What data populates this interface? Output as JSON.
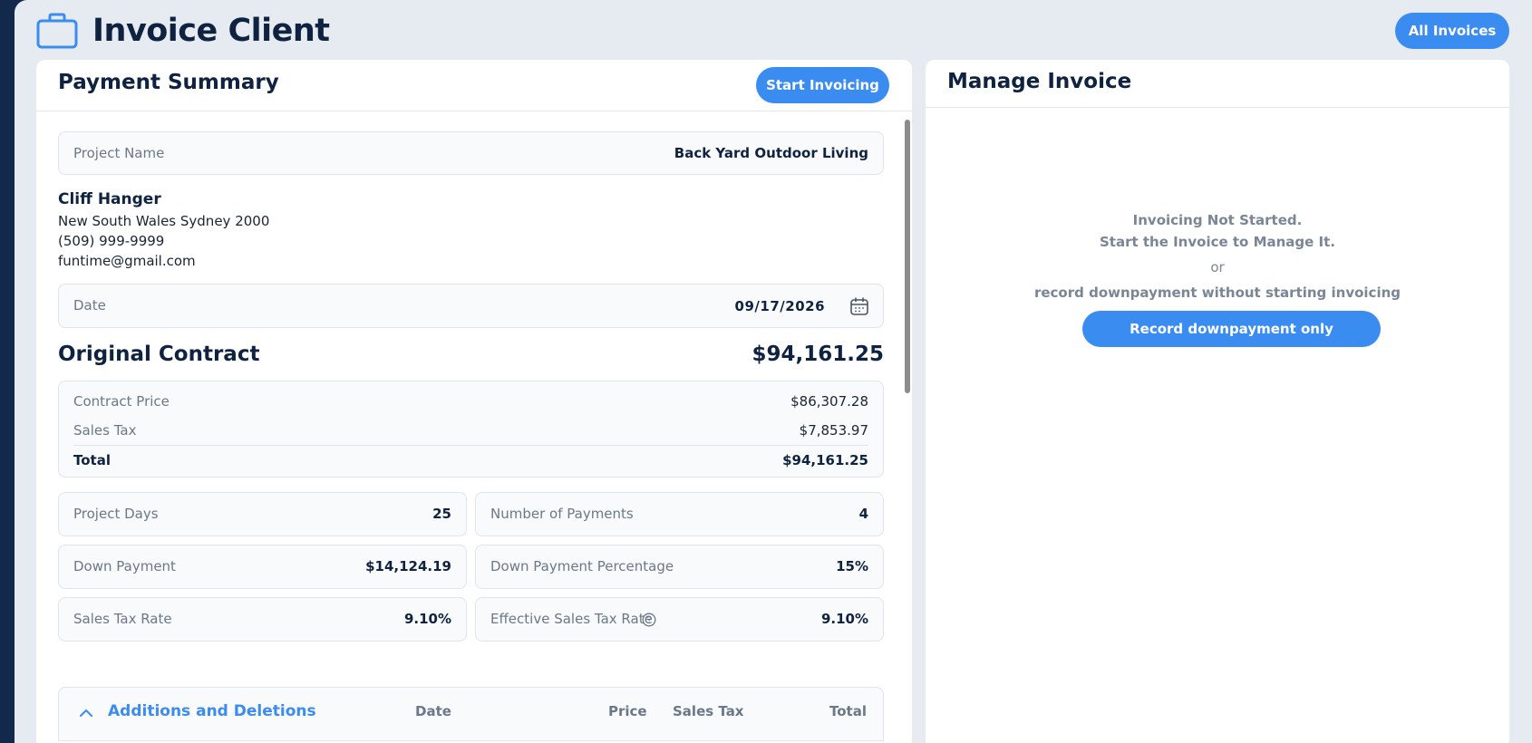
{
  "header": {
    "title": "Invoice Client",
    "all_invoices_label": "All Invoices"
  },
  "payment_summary": {
    "title": "Payment Summary",
    "start_invoicing_label": "Start Invoicing",
    "project_name_label": "Project Name",
    "project_name_value": "Back Yard Outdoor Living",
    "client": {
      "name": "Cliff Hanger",
      "address": "New South Wales Sydney 2000",
      "phone": "(509) 999-9999",
      "email": "funtime@gmail.com"
    },
    "date_label": "Date",
    "date_value": "09/17/2026",
    "original_contract": {
      "title": "Original Contract",
      "amount": "$94,161.25",
      "contract_price_label": "Contract Price",
      "contract_price_value": "$86,307.28",
      "sales_tax_label": "Sales Tax",
      "sales_tax_value": "$7,853.97",
      "total_label": "Total",
      "total_value": "$94,161.25"
    },
    "metrics": {
      "project_days_label": "Project Days",
      "project_days_value": "25",
      "num_payments_label": "Number of Payments",
      "num_payments_value": "4",
      "down_payment_label": "Down Payment",
      "down_payment_value": "$14,124.19",
      "down_payment_pct_label": "Down Payment Percentage",
      "down_payment_pct_value": "15%",
      "sales_tax_rate_label": "Sales Tax Rate",
      "sales_tax_rate_value": "9.10%",
      "effective_tax_rate_label": "Effective Sales Tax Rate",
      "effective_tax_rate_value": "9.10%"
    },
    "additions": {
      "title": "Additions and Deletions",
      "col_date": "Date",
      "col_price": "Price",
      "col_sales_tax": "Sales Tax",
      "col_total": "Total"
    }
  },
  "manage_invoice": {
    "title": "Manage Invoice",
    "line1": "Invoicing Not Started.",
    "line2": "Start the Invoice to Manage It.",
    "or": "or",
    "line3": "record downpayment without starting invoicing",
    "downpayment_button": "Record downpayment only"
  },
  "colors": {
    "accent": "#3b8cf0",
    "navy": "#0f2340",
    "sidebar": "#13294b",
    "background": "#e6ebf1"
  },
  "icons": {
    "brand": "briefcase-icon",
    "date": "calendar-icon",
    "help": "help-circle-icon",
    "collapse": "chevron-up-icon"
  }
}
